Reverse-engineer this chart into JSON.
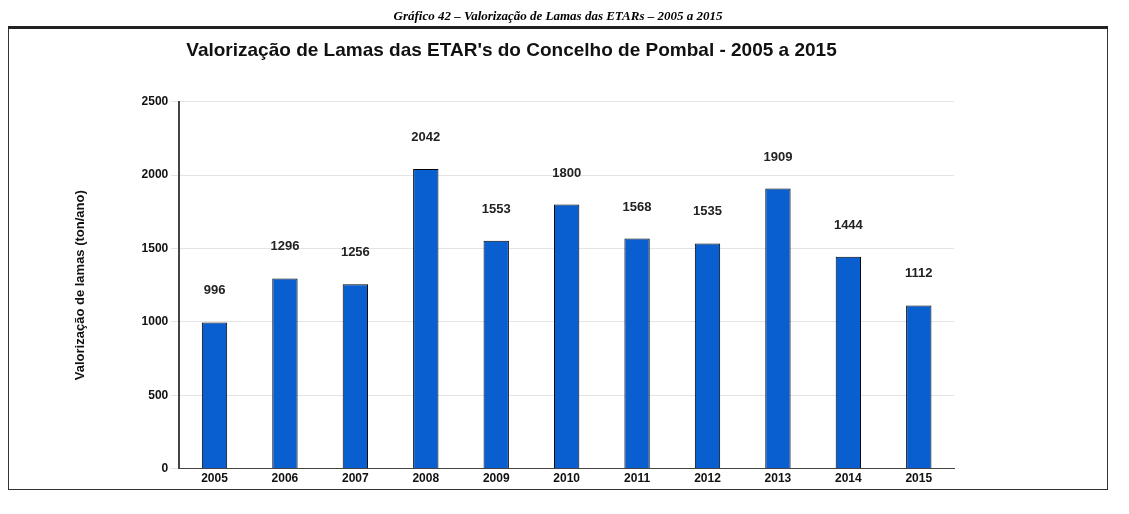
{
  "chart_data": {
    "type": "bar",
    "title": "Valorização de Lamas das ETAR's do Concelho de Pombal - 2005 a 2015",
    "annotations": [
      "Gráfico 42 – Valorização de Lamas das ETARs – 2005 a 2015"
    ],
    "ylabel": "Valorização de lamas (ton/ano)",
    "categories": [
      "2005",
      "2006",
      "2007",
      "2008",
      "2009",
      "2010",
      "2011",
      "2012",
      "2013",
      "2014",
      "2015"
    ],
    "values": [
      996,
      1296,
      1256,
      2042,
      1553,
      1800,
      1568,
      1535,
      1909,
      1444,
      1112
    ],
    "color": "#0a5fd0",
    "ylim": [
      0,
      2500
    ],
    "yticks": [
      0,
      500,
      1000,
      1500,
      2000,
      2500
    ],
    "grid": "y",
    "data_labels": true
  }
}
